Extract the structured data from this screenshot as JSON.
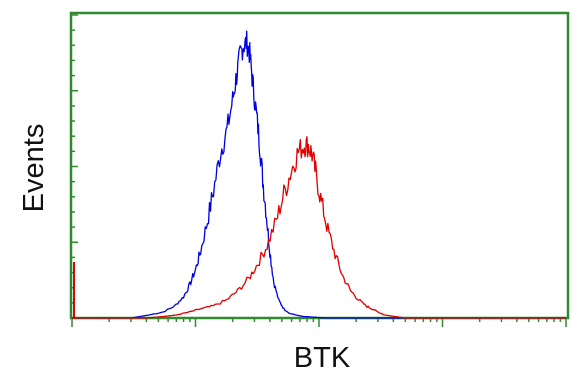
{
  "chart_data": {
    "type": "line",
    "title": "",
    "xlabel": "BTK",
    "ylabel": "Events",
    "x_scale": "log",
    "xlim": [
      1,
      10000
    ],
    "ylim": [
      0,
      100
    ],
    "grid": false,
    "frame_color": "#2e8b2e",
    "series": [
      {
        "color": "#0000e0",
        "x": [
          1.0,
          2.0,
          3.0,
          4.2,
          5.5,
          6.8,
          8.0,
          9.0,
          10.0,
          11.0,
          12.5,
          14.0,
          16.0,
          18.0,
          20.0,
          21.5,
          23.0,
          24.5,
          26.0,
          27.5,
          29.0,
          31.0,
          33.0,
          35.0,
          37.5,
          40.0,
          43.0,
          47.0,
          52.0,
          58.0,
          65.0,
          75.0,
          90.0,
          110.0,
          150.0,
          250.0,
          500.0,
          1000.0,
          10000.0
        ],
        "y": [
          0,
          0,
          0,
          1,
          2,
          4,
          7,
          11,
          16,
          22,
          32,
          42,
          55,
          62,
          72,
          80,
          87,
          90,
          91,
          87,
          78,
          68,
          58,
          46,
          34,
          22,
          12,
          6,
          3,
          1.5,
          1,
          0.5,
          0.3,
          0,
          0,
          0,
          0,
          0,
          0
        ]
      },
      {
        "color": "#e00000",
        "x": [
          1.0,
          2.0,
          4.0,
          5.5,
          7.0,
          9.0,
          11.0,
          14.0,
          18.0,
          22.0,
          27.0,
          32.0,
          38.0,
          45.0,
          52.0,
          60.0,
          68.0,
          76.0,
          82.0,
          88.0,
          95.0,
          105.0,
          118.0,
          135.0,
          155.0,
          180.0,
          210.0,
          240.0,
          270.0,
          300.0,
          340.0,
          500.0,
          1000.0,
          10000.0
        ],
        "y": [
          0,
          0,
          0,
          0.5,
          1,
          2,
          3,
          4,
          6,
          9,
          13,
          18,
          24,
          32,
          41,
          49,
          55,
          57,
          57,
          54,
          47,
          38,
          29,
          21,
          14,
          9,
          6,
          4,
          3,
          2,
          1,
          0,
          0,
          0
        ]
      }
    ]
  }
}
